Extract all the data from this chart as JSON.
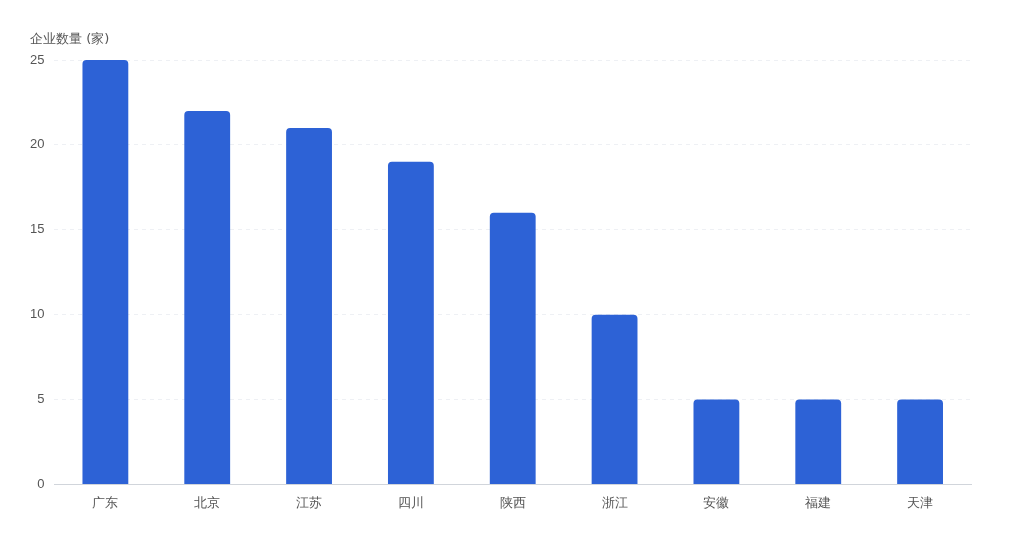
{
  "chart_data": {
    "type": "bar",
    "ylabel": "企业数量 (家)",
    "categories": [
      "广东",
      "北京",
      "江苏",
      "四川",
      "陕西",
      "浙江",
      "安徽",
      "福建",
      "天津"
    ],
    "values": [
      25,
      22,
      21,
      19,
      16,
      10,
      5,
      5,
      5
    ],
    "color": "#2d62d6",
    "ylim": [
      0,
      25
    ],
    "yticks": [
      0,
      5,
      10,
      15,
      20,
      25
    ],
    "grid": "y"
  }
}
